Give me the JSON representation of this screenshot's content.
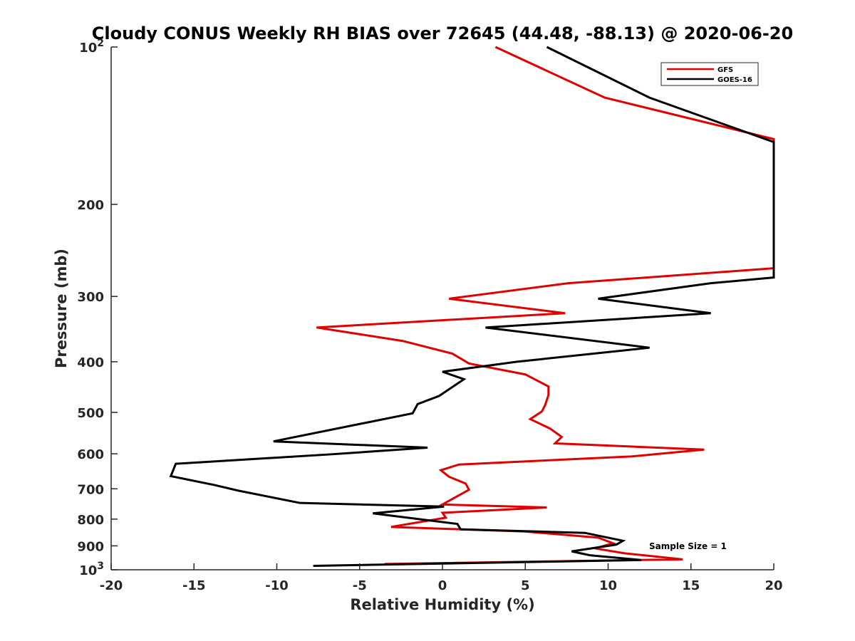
{
  "chart_data": {
    "type": "line",
    "title": "Cloudy CONUS Weekly RH BIAS over 72645 (44.48, -88.13) @ 2020-06-20",
    "xlabel": "Relative Humidity (%)",
    "ylabel": "Pressure (mb)",
    "xlim": [
      -20,
      20
    ],
    "ylim": [
      100,
      1000
    ],
    "yscale": "log",
    "y_reversed": true,
    "grid": false,
    "legend_position": "top-right",
    "x_ticks": [
      -20,
      -15,
      -10,
      -5,
      0,
      5,
      10,
      15,
      20
    ],
    "x_tick_labels": [
      "-20",
      "-15",
      "-10",
      "-5",
      "0",
      "5",
      "10",
      "15",
      "20"
    ],
    "y_ticks": [
      {
        "value": 100,
        "base": "10",
        "exp": "2",
        "label": ""
      },
      {
        "value": 200,
        "base": "",
        "exp": "",
        "label": "200"
      },
      {
        "value": 300,
        "base": "",
        "exp": "",
        "label": "300"
      },
      {
        "value": 400,
        "base": "",
        "exp": "",
        "label": "400"
      },
      {
        "value": 500,
        "base": "",
        "exp": "",
        "label": "500"
      },
      {
        "value": 600,
        "base": "",
        "exp": "",
        "label": "600"
      },
      {
        "value": 700,
        "base": "",
        "exp": "",
        "label": "700"
      },
      {
        "value": 800,
        "base": "",
        "exp": "",
        "label": "800"
      },
      {
        "value": 900,
        "base": "",
        "exp": "",
        "label": "900"
      },
      {
        "value": 1000,
        "base": "10",
        "exp": "3",
        "label": ""
      }
    ],
    "annotation": "Sample Size = 1",
    "series": [
      {
        "name": "GFS",
        "color": "#e00000",
        "points": [
          {
            "x": 3.2,
            "y": 100
          },
          {
            "x": 9.8,
            "y": 125
          },
          {
            "x": 20,
            "y": 150
          },
          {
            "x": 20,
            "y": 265
          },
          {
            "x": 7.6,
            "y": 283
          },
          {
            "x": 0.4,
            "y": 303
          },
          {
            "x": 7.4,
            "y": 323
          },
          {
            "x": -7.6,
            "y": 344
          },
          {
            "x": -2.4,
            "y": 365
          },
          {
            "x": 0.6,
            "y": 386
          },
          {
            "x": 1.6,
            "y": 403
          },
          {
            "x": 5.0,
            "y": 423
          },
          {
            "x": 6.4,
            "y": 446
          },
          {
            "x": 6.4,
            "y": 463
          },
          {
            "x": 6.2,
            "y": 484
          },
          {
            "x": 6.0,
            "y": 498
          },
          {
            "x": 5.3,
            "y": 515
          },
          {
            "x": 6.5,
            "y": 537
          },
          {
            "x": 7.2,
            "y": 557
          },
          {
            "x": 6.8,
            "y": 573
          },
          {
            "x": 15.8,
            "y": 589
          },
          {
            "x": 11.4,
            "y": 607
          },
          {
            "x": 1.0,
            "y": 629
          },
          {
            "x": -0.1,
            "y": 645
          },
          {
            "x": 0.4,
            "y": 664
          },
          {
            "x": 1.4,
            "y": 684
          },
          {
            "x": 1.6,
            "y": 703
          },
          {
            "x": 0.8,
            "y": 726
          },
          {
            "x": 0,
            "y": 750
          },
          {
            "x": 6.3,
            "y": 760
          },
          {
            "x": 0,
            "y": 778
          },
          {
            "x": 0.2,
            "y": 795
          },
          {
            "x": -3.1,
            "y": 828
          },
          {
            "x": 5.0,
            "y": 845
          },
          {
            "x": 9.4,
            "y": 868
          },
          {
            "x": 10.3,
            "y": 890
          },
          {
            "x": 9.2,
            "y": 910
          },
          {
            "x": 11.0,
            "y": 930
          },
          {
            "x": 14.5,
            "y": 955
          },
          {
            "x": -3.5,
            "y": 975
          }
        ]
      },
      {
        "name": "GOES-16",
        "color": "#000000",
        "points": [
          {
            "x": 6.3,
            "y": 100
          },
          {
            "x": 12.5,
            "y": 125
          },
          {
            "x": 20,
            "y": 152
          },
          {
            "x": 20,
            "y": 276
          },
          {
            "x": 16.2,
            "y": 283
          },
          {
            "x": 9.4,
            "y": 303
          },
          {
            "x": 16.2,
            "y": 323
          },
          {
            "x": 2.6,
            "y": 344
          },
          {
            "x": 12.5,
            "y": 376
          },
          {
            "x": 4.5,
            "y": 400
          },
          {
            "x": 0,
            "y": 418
          },
          {
            "x": 1.3,
            "y": 432
          },
          {
            "x": -0.2,
            "y": 465
          },
          {
            "x": -1.5,
            "y": 482
          },
          {
            "x": -1.8,
            "y": 502
          },
          {
            "x": -10.2,
            "y": 568
          },
          {
            "x": -0.9,
            "y": 584
          },
          {
            "x": -6.6,
            "y": 601
          },
          {
            "x": -16.1,
            "y": 627
          },
          {
            "x": -16.4,
            "y": 662
          },
          {
            "x": -13.8,
            "y": 688
          },
          {
            "x": -12.3,
            "y": 706
          },
          {
            "x": -8.6,
            "y": 745
          },
          {
            "x": 0.1,
            "y": 757
          },
          {
            "x": -4.2,
            "y": 780
          },
          {
            "x": 0.9,
            "y": 817
          },
          {
            "x": 1.1,
            "y": 837
          },
          {
            "x": 8.6,
            "y": 850
          },
          {
            "x": 10.9,
            "y": 880
          },
          {
            "x": 10.5,
            "y": 895
          },
          {
            "x": 7.8,
            "y": 922
          },
          {
            "x": 8.9,
            "y": 938
          },
          {
            "x": 12.0,
            "y": 958
          },
          {
            "x": -7.8,
            "y": 983
          }
        ]
      }
    ]
  }
}
